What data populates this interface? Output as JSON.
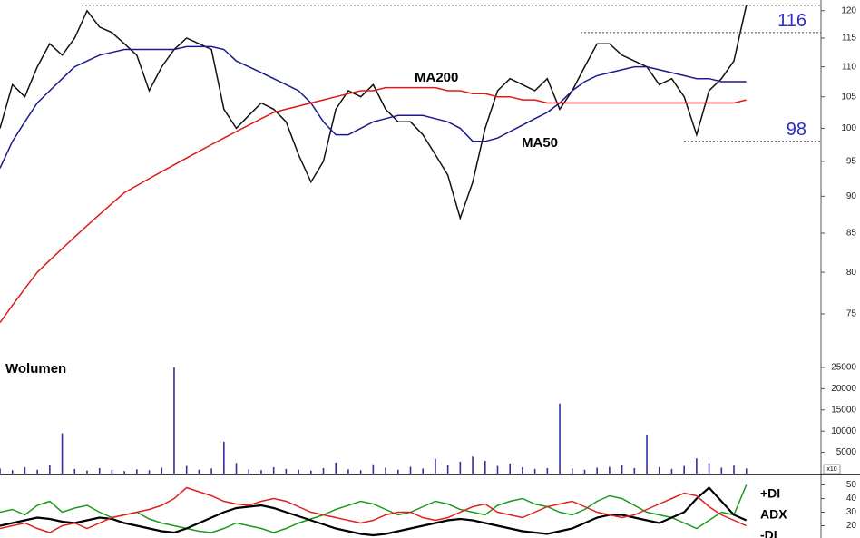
{
  "chart_data": [
    {
      "type": "line",
      "log_scale": true,
      "xlim": [
        0,
        66
      ],
      "ylim": [
        71,
        122
      ],
      "yticks": [
        75,
        80,
        85,
        90,
        95,
        100,
        105,
        110,
        115,
        120
      ],
      "x": [
        0,
        1,
        2,
        3,
        4,
        5,
        6,
        7,
        8,
        9,
        10,
        11,
        12,
        13,
        14,
        15,
        16,
        17,
        18,
        19,
        20,
        21,
        22,
        23,
        24,
        25,
        26,
        27,
        28,
        29,
        30,
        31,
        32,
        33,
        34,
        35,
        36,
        37,
        38,
        39,
        40,
        41,
        42,
        43,
        44,
        45,
        46,
        47,
        48,
        49,
        50,
        51,
        52,
        53,
        54,
        55,
        56,
        57,
        58,
        59,
        60
      ],
      "series": [
        {
          "color": "#111111",
          "values": [
            100,
            107,
            105,
            110,
            114,
            112,
            115,
            120,
            117,
            116,
            114,
            112,
            106,
            110,
            113,
            115,
            114,
            113,
            103,
            100,
            102,
            104,
            103,
            101,
            96,
            92,
            95,
            103,
            106,
            105,
            107,
            103,
            101,
            101,
            99,
            96,
            93,
            87,
            92,
            100,
            106,
            108,
            107,
            106,
            108,
            103,
            106,
            110,
            114,
            114,
            112,
            111,
            110,
            107,
            108,
            105,
            99,
            106,
            108,
            111,
            121
          ]
        },
        {
          "color": "#1a1a8c",
          "values": [
            94,
            98,
            101,
            104,
            106,
            108,
            110,
            111,
            112,
            112.5,
            113,
            113,
            113,
            113,
            113,
            113.5,
            113.5,
            113.5,
            113,
            111,
            110,
            109,
            108,
            107,
            106,
            104,
            101,
            99,
            99,
            100,
            101,
            101.5,
            102,
            102,
            102,
            101.5,
            101,
            100,
            98,
            98,
            98.5,
            99.5,
            100.5,
            101.5,
            102.5,
            104,
            106,
            107.5,
            108.5,
            109,
            109.5,
            110,
            110,
            109.5,
            109,
            108.5,
            108,
            108,
            107.5,
            107.5,
            107.5
          ]
        },
        {
          "color": "#e01818",
          "values": [
            74,
            76,
            78,
            80,
            81.5,
            83,
            84.5,
            86,
            87.5,
            89,
            90.5,
            91.5,
            92.5,
            93.5,
            94.5,
            95.5,
            96.5,
            97.5,
            98.5,
            99.5,
            100.5,
            101.5,
            102.5,
            103,
            103.5,
            104,
            104.5,
            105,
            105.5,
            106,
            106,
            106.5,
            106.5,
            106.5,
            106.5,
            106.5,
            106,
            106,
            105.5,
            105.5,
            105,
            105,
            104.5,
            104.5,
            104,
            104,
            104,
            104,
            104,
            104,
            104,
            104,
            104,
            104,
            104,
            104,
            104,
            104,
            104,
            104,
            104.5
          ]
        }
      ],
      "levels": [
        121,
        116,
        98
      ],
      "level_color": "#2a2ad0",
      "annotations": [
        "MA200",
        "MA50"
      ]
    },
    {
      "type": "bar",
      "title": "Wolumen",
      "y_unit_label": "x10",
      "xlim": [
        0,
        66
      ],
      "ylim": [
        0,
        26700
      ],
      "yticks": [
        5000,
        10000,
        15000,
        20000,
        25000
      ],
      "color": "#3030a0",
      "x": [
        0,
        1,
        2,
        3,
        4,
        5,
        6,
        7,
        8,
        9,
        10,
        11,
        12,
        13,
        14,
        15,
        16,
        17,
        18,
        19,
        20,
        21,
        22,
        23,
        24,
        25,
        26,
        27,
        28,
        29,
        30,
        31,
        32,
        33,
        34,
        35,
        36,
        37,
        38,
        39,
        40,
        41,
        42,
        43,
        44,
        45,
        46,
        47,
        48,
        49,
        50,
        51,
        52,
        53,
        54,
        55,
        56,
        57,
        58,
        59,
        60
      ],
      "values": [
        1200,
        800,
        1500,
        900,
        2000,
        9500,
        1100,
        700,
        1300,
        900,
        600,
        1000,
        800,
        1400,
        25000,
        1800,
        900,
        1200,
        7500,
        2500,
        1000,
        800,
        1500,
        1100,
        900,
        700,
        1300,
        2600,
        1000,
        800,
        2200,
        1400,
        900,
        1600,
        1200,
        3500,
        2000,
        2800,
        4000,
        3000,
        1800,
        2400,
        1500,
        1100,
        1300,
        16500,
        1200,
        900,
        1400,
        1600,
        2000,
        1300,
        9000,
        1500,
        1100,
        1800,
        3600,
        2500,
        1400,
        1900,
        1200
      ]
    },
    {
      "type": "line",
      "xlim": [
        0,
        66
      ],
      "ylim": [
        11,
        57
      ],
      "yticks": [
        20,
        30,
        40,
        50
      ],
      "x": [
        0,
        1,
        2,
        3,
        4,
        5,
        6,
        7,
        8,
        9,
        10,
        11,
        12,
        13,
        14,
        15,
        16,
        17,
        18,
        19,
        20,
        21,
        22,
        23,
        24,
        25,
        26,
        27,
        28,
        29,
        30,
        31,
        32,
        33,
        34,
        35,
        36,
        37,
        38,
        39,
        40,
        41,
        42,
        43,
        44,
        45,
        46,
        47,
        48,
        49,
        50,
        51,
        52,
        53,
        54,
        55,
        56,
        57,
        58,
        59,
        60
      ],
      "series": [
        {
          "name": "+DI",
          "color": "#1a9a1a",
          "values": [
            30,
            32,
            28,
            35,
            38,
            30,
            33,
            35,
            30,
            26,
            28,
            30,
            25,
            22,
            20,
            18,
            16,
            15,
            18,
            22,
            20,
            18,
            15,
            18,
            22,
            25,
            28,
            32,
            35,
            38,
            36,
            32,
            28,
            30,
            34,
            38,
            36,
            32,
            30,
            28,
            35,
            38,
            40,
            36,
            34,
            30,
            28,
            32,
            38,
            42,
            40,
            35,
            30,
            28,
            26,
            22,
            18,
            24,
            30,
            28,
            50
          ]
        },
        {
          "name": "ADX",
          "color": "#000000",
          "values": [
            20,
            22,
            24,
            26,
            25,
            23,
            22,
            24,
            26,
            25,
            22,
            20,
            18,
            16,
            15,
            18,
            22,
            26,
            30,
            33,
            34,
            35,
            33,
            30,
            27,
            24,
            21,
            18,
            16,
            14,
            13,
            14,
            16,
            18,
            20,
            22,
            24,
            25,
            24,
            22,
            20,
            18,
            16,
            15,
            14,
            16,
            18,
            22,
            26,
            28,
            28,
            26,
            24,
            22,
            26,
            30,
            40,
            48,
            38,
            28,
            24
          ]
        },
        {
          "name": "-DI",
          "color": "#e02020",
          "values": [
            18,
            20,
            22,
            18,
            15,
            20,
            22,
            18,
            22,
            26,
            28,
            30,
            32,
            35,
            40,
            48,
            45,
            42,
            38,
            36,
            35,
            38,
            40,
            38,
            34,
            30,
            28,
            26,
            24,
            22,
            24,
            28,
            30,
            30,
            26,
            24,
            26,
            30,
            34,
            36,
            30,
            28,
            26,
            30,
            34,
            36,
            38,
            34,
            30,
            28,
            26,
            28,
            32,
            36,
            40,
            44,
            42,
            34,
            28,
            24,
            20
          ]
        }
      ]
    }
  ]
}
